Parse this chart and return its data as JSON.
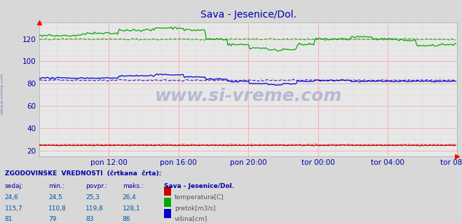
{
  "title": "Sava - Jesenice/Dol.",
  "title_color": "#0000aa",
  "bg_color": "#d8d8d8",
  "plot_bg_color": "#e8e8e8",
  "grid_color_major": "#ffaaaa",
  "grid_color_minor": "#ddcccc",
  "xlabel_ticks": [
    "pon 12:00",
    "pon 16:00",
    "pon 20:00",
    "tor 00:00",
    "tor 04:00",
    "tor 08:00"
  ],
  "ylabel_ticks": [
    20,
    40,
    60,
    80,
    100,
    120
  ],
  "ylim": [
    15,
    135
  ],
  "xlim": [
    0,
    288
  ],
  "temperatura_color": "#cc0000",
  "pretok_color": "#00aa00",
  "visina_color": "#0000cc",
  "watermark": "www.si-vreme.com",
  "watermark_color": "#aaaacc",
  "footer_title": "ZGODOVINSKE  VREDNOSTI  (črtkana  črta):",
  "footer_col_headers": [
    "sedaj:",
    "min.:",
    "povpr.:",
    "maks.:"
  ],
  "footer_rows": [
    {
      "label": "temperatura[C]",
      "color": "#cc0000",
      "sedaj": "24,6",
      "min": "24,5",
      "povpr": "25,3",
      "maks": "26,4"
    },
    {
      "label": "pretok[m3/s]",
      "color": "#00aa00",
      "sedaj": "115,7",
      "min": "110,8",
      "povpr": "119,8",
      "maks": "128,1"
    },
    {
      "label": "višina[cm]",
      "color": "#0000cc",
      "sedaj": "81",
      "min": "79",
      "povpr": "83",
      "maks": "86"
    }
  ],
  "footer_station": "Sava - Jesenice/Dol.",
  "tick_label_color": "#0000aa",
  "tick_label_size": 7.5
}
